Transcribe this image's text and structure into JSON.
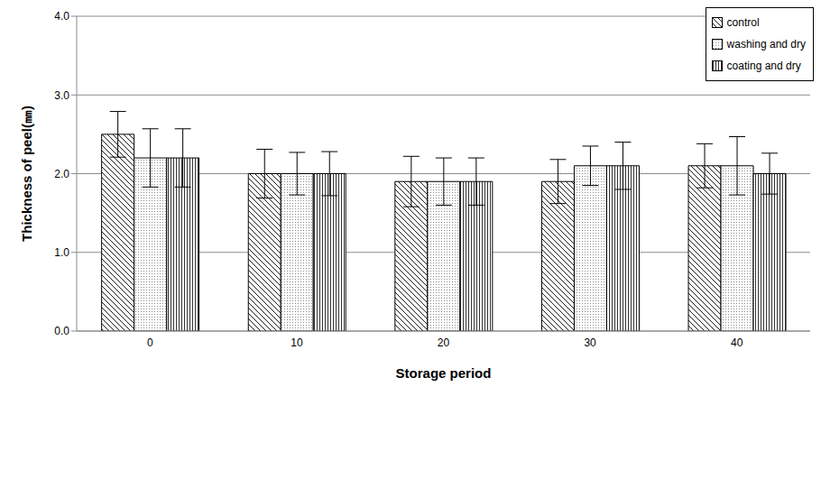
{
  "chart_data": {
    "type": "bar",
    "x_label": "Storage period",
    "y_label": "Thickness of peel(㎜)",
    "categories": [
      "0",
      "10",
      "20",
      "30",
      "40"
    ],
    "series": [
      {
        "name": "control",
        "color": "#000000",
        "values": [
          2.5,
          2.0,
          1.9,
          1.9,
          2.1
        ],
        "errors": [
          0.29,
          0.31,
          0.32,
          0.28,
          0.28
        ]
      },
      {
        "name": "washing and dry",
        "color": "#000000",
        "values": [
          2.2,
          2.0,
          1.9,
          2.1,
          2.1
        ],
        "errors": [
          0.37,
          0.27,
          0.3,
          0.25,
          0.37
        ]
      },
      {
        "name": "coating and dry",
        "color": "#000000",
        "values": [
          2.2,
          2.0,
          1.9,
          2.1,
          2.0
        ],
        "errors": [
          0.37,
          0.28,
          0.3,
          0.3,
          0.26
        ]
      }
    ],
    "ylim": [
      0,
      4
    ],
    "yticks": [
      {
        "value": 0,
        "label": "0.0"
      },
      {
        "value": 1,
        "label": "1.0"
      },
      {
        "value": 2,
        "label": "2.0"
      },
      {
        "value": 3,
        "label": "3.0"
      },
      {
        "value": 4,
        "label": "4.0"
      }
    ],
    "grid": true,
    "legend": "upper right"
  }
}
